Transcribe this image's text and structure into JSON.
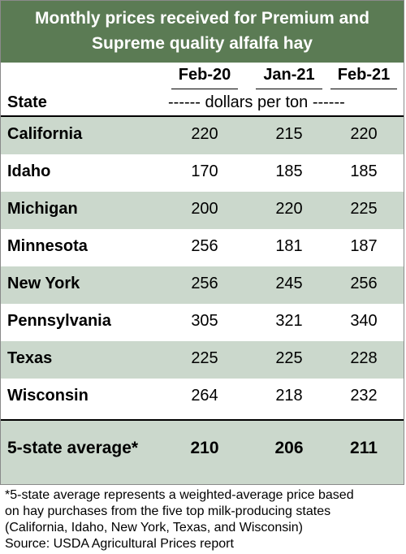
{
  "chart_data": {
    "type": "table",
    "title_lines": [
      "Monthly prices received for Premium and",
      "Supreme quality alfalfa hay"
    ],
    "columns": [
      "Feb-20",
      "Jan-21",
      "Feb-21"
    ],
    "row_header": "State",
    "units": "------ dollars per ton ------",
    "rows": [
      {
        "state": "California",
        "values": [
          220,
          215,
          220
        ]
      },
      {
        "state": "Idaho",
        "values": [
          170,
          185,
          185
        ]
      },
      {
        "state": "Michigan",
        "values": [
          200,
          220,
          225
        ]
      },
      {
        "state": "Minnesota",
        "values": [
          256,
          181,
          187
        ]
      },
      {
        "state": "New York",
        "values": [
          256,
          245,
          256
        ]
      },
      {
        "state": "Pennsylvania",
        "values": [
          305,
          321,
          340
        ]
      },
      {
        "state": "Texas",
        "values": [
          225,
          225,
          228
        ]
      },
      {
        "state": "Wisconsin",
        "values": [
          264,
          218,
          232
        ]
      }
    ],
    "average": {
      "label": "5-state average*",
      "values": [
        210,
        206,
        211
      ]
    }
  },
  "footnote_lines": [
    "*5-state average represents  a weighted-average price based",
    "on hay purchases from the five top milk-producing states",
    "(California, Idaho, New York, Texas, and Wisconsin)",
    "Source: USDA Agricultural Prices report"
  ],
  "colors": {
    "header_green": "#5b7b54",
    "row_shade": "#cbd8cc"
  }
}
